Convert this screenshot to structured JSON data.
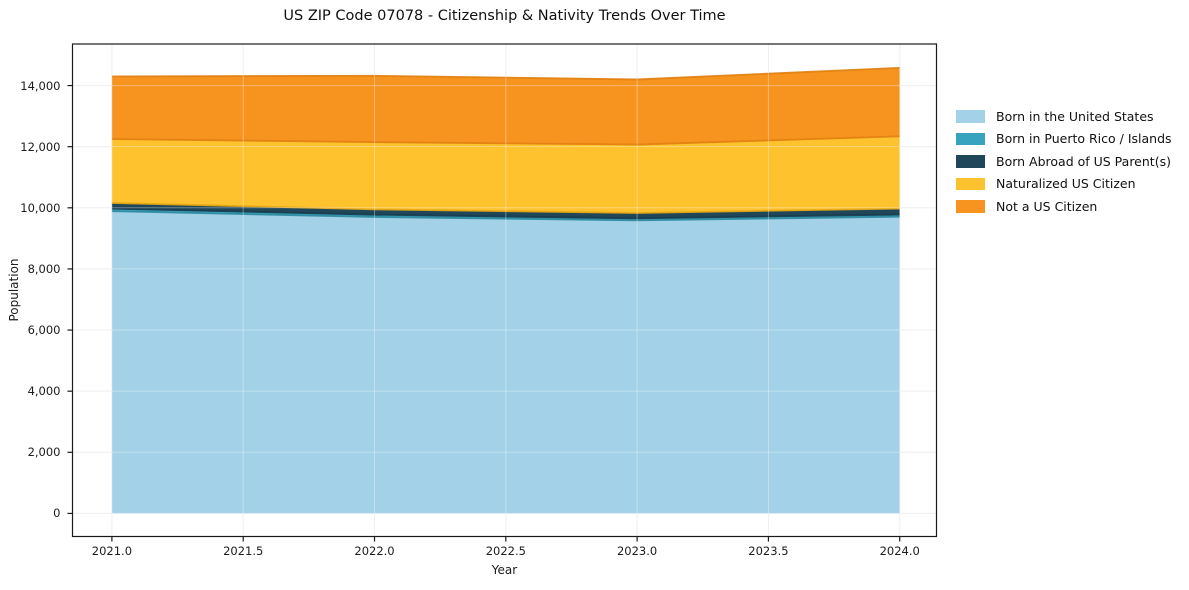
{
  "figure": {
    "background": "#ffffff",
    "text_color": "#1c1c1c",
    "grid_color": "#e9e9e9",
    "spine_color": "#1a1a1a"
  },
  "chart_data": {
    "type": "area",
    "stacked": true,
    "title": "US ZIP Code 07078 - Citizenship & Nativity Trends Over Time",
    "xlabel": "Year",
    "ylabel": "Population",
    "x": [
      2021,
      2022,
      2023,
      2024
    ],
    "series": [
      {
        "name": "Born in the United States",
        "color": "#a3d1e7",
        "edge": "#7fbbd9",
        "values": [
          9890,
          9700,
          9590,
          9710
        ]
      },
      {
        "name": "Born in Puerto Rico / Islands",
        "color": "#38a3be",
        "edge": "#2d89a0",
        "values": [
          85,
          75,
          65,
          70
        ]
      },
      {
        "name": "Born Abroad of US Parent(s)",
        "color": "#1f4659",
        "edge": "#173a4b",
        "values": [
          185,
          175,
          175,
          195
        ]
      },
      {
        "name": "Naturalized US Citizen",
        "color": "#fdc22d",
        "edge": "#e9a812",
        "values": [
          2090,
          2200,
          2240,
          2365
        ]
      },
      {
        "name": "Not a US Citizen",
        "color": "#f79420",
        "edge": "#e07e10",
        "values": [
          2050,
          2170,
          2130,
          2240
        ]
      }
    ],
    "stack_totals": [
      14300,
      14320,
      14200,
      14580
    ],
    "x_ticks": [
      2021.0,
      2021.5,
      2022.0,
      2022.5,
      2023.0,
      2023.5,
      2024.0
    ],
    "x_tick_labels": [
      "2021.0",
      "2021.5",
      "2022.0",
      "2022.5",
      "2023.0",
      "2023.5",
      "2024.0"
    ],
    "y_ticks": [
      0,
      2000,
      4000,
      6000,
      8000,
      10000,
      12000,
      14000
    ],
    "y_tick_labels": [
      "0",
      "2,000",
      "4,000",
      "6,000",
      "8,000",
      "10,000",
      "12,000",
      "14,000"
    ],
    "xlim": [
      2020.85,
      2024.14
    ],
    "ylim": [
      -755,
      15360
    ],
    "grid": true,
    "legend_position": "outside-right"
  }
}
